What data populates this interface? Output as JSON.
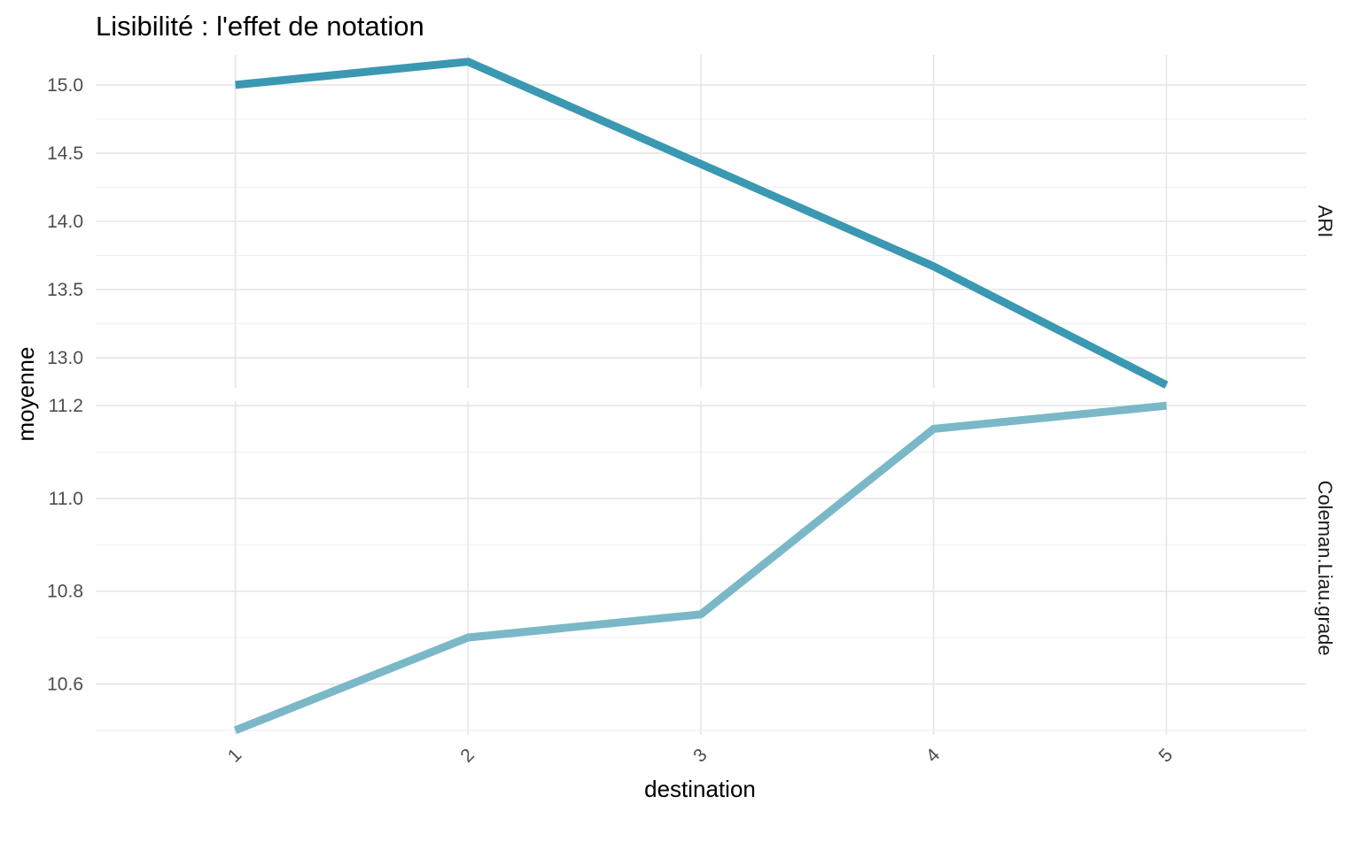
{
  "chart_data": {
    "type": "line",
    "title": "Lisibilité : l'effet de notation",
    "xlabel": "destination",
    "ylabel": "moyenne",
    "x": [
      1,
      2,
      3,
      4,
      5
    ],
    "x_tick_labels": [
      "1",
      "2",
      "3",
      "4",
      "5"
    ],
    "grid": true,
    "legend": "none",
    "panels": [
      {
        "strip": "ARI",
        "ylim": [
          12.78,
          15.22
        ],
        "yticks": [
          13.0,
          13.5,
          14.0,
          14.5,
          15.0
        ],
        "ytick_labels": [
          "13.0",
          "13.5",
          "14.0",
          "14.5",
          "15.0"
        ],
        "color": "#3a98b2",
        "values": [
          15.0,
          15.17,
          14.42,
          13.67,
          12.8
        ]
      },
      {
        "strip": "Coleman.Liau.grade",
        "ylim": [
          10.49,
          11.21
        ],
        "yticks": [
          10.6,
          10.8,
          11.0,
          11.2
        ],
        "ytick_labels": [
          "10.6",
          "10.8",
          "11.0",
          "11.2"
        ],
        "color": "#7ab8c8",
        "values": [
          10.5,
          10.7,
          10.75,
          11.15,
          11.2
        ]
      }
    ]
  }
}
